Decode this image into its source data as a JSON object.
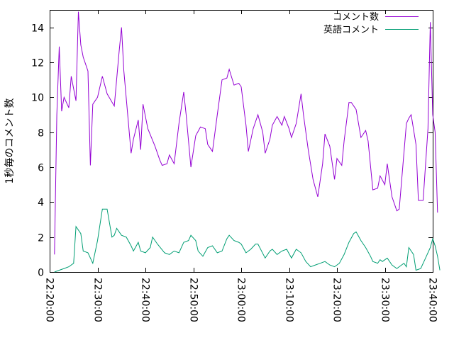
{
  "chart_data": {
    "type": "line",
    "title": "",
    "xlabel": "",
    "ylabel": "1秒毎のコメント数",
    "xlim": [
      "22:20:00",
      "23:40:00"
    ],
    "ylim": [
      0,
      15
    ],
    "x_ticks": [
      "22:20:00",
      "22:30:00",
      "22:40:00",
      "22:50:00",
      "23:00:00",
      "23:10:00",
      "23:20:00",
      "23:30:00",
      "23:40:00"
    ],
    "y_ticks": [
      "0",
      "2",
      "4",
      "6",
      "8",
      "10",
      "12",
      "14"
    ],
    "grid": false,
    "legend_position": "top-right",
    "series": [
      {
        "name": "コメント数",
        "color": "#9400d3",
        "points": [
          [
            "22:21:00",
            1.0
          ],
          [
            "22:21:30",
            9.0
          ],
          [
            "22:22:00",
            12.9
          ],
          [
            "22:22:30",
            9.2
          ],
          [
            "22:23:00",
            10.0
          ],
          [
            "22:24:00",
            9.4
          ],
          [
            "22:24:30",
            11.2
          ],
          [
            "22:25:30",
            9.8
          ],
          [
            "22:26:00",
            14.9
          ],
          [
            "22:26:30",
            13.0
          ],
          [
            "22:27:00",
            12.3
          ],
          [
            "22:28:00",
            11.5
          ],
          [
            "22:28:30",
            6.1
          ],
          [
            "22:29:00",
            9.6
          ],
          [
            "22:30:00",
            10.0
          ],
          [
            "22:31:00",
            11.2
          ],
          [
            "22:32:00",
            10.2
          ],
          [
            "22:33:30",
            9.5
          ],
          [
            "22:34:30",
            12.6
          ],
          [
            "22:35:00",
            14.0
          ],
          [
            "22:35:30",
            11.5
          ],
          [
            "22:37:00",
            6.8
          ],
          [
            "22:37:30",
            7.6
          ],
          [
            "22:38:30",
            8.7
          ],
          [
            "22:39:00",
            7.0
          ],
          [
            "22:39:30",
            9.6
          ],
          [
            "22:40:30",
            8.2
          ],
          [
            "22:42:00",
            7.2
          ],
          [
            "22:43:00",
            6.4
          ],
          [
            "22:43:30",
            6.1
          ],
          [
            "22:44:30",
            6.2
          ],
          [
            "22:45:00",
            6.7
          ],
          [
            "22:46:00",
            6.2
          ],
          [
            "22:47:00",
            8.5
          ],
          [
            "22:48:00",
            10.3
          ],
          [
            "22:48:30",
            9.0
          ],
          [
            "22:49:30",
            6.0
          ],
          [
            "22:50:30",
            7.8
          ],
          [
            "22:51:30",
            8.3
          ],
          [
            "22:52:30",
            8.2
          ],
          [
            "22:53:00",
            7.3
          ],
          [
            "22:54:00",
            6.9
          ],
          [
            "22:55:00",
            9.0
          ],
          [
            "22:56:00",
            11.0
          ],
          [
            "22:57:00",
            11.1
          ],
          [
            "22:57:30",
            11.6
          ],
          [
            "22:58:30",
            10.7
          ],
          [
            "22:59:30",
            10.8
          ],
          [
            "23:00:00",
            10.6
          ],
          [
            "23:01:00",
            8.4
          ],
          [
            "23:01:30",
            6.9
          ],
          [
            "23:02:30",
            8.2
          ],
          [
            "23:03:30",
            9.0
          ],
          [
            "23:04:30",
            8.0
          ],
          [
            "23:05:00",
            6.8
          ],
          [
            "23:06:00",
            7.6
          ],
          [
            "23:06:30",
            8.4
          ],
          [
            "23:07:30",
            8.9
          ],
          [
            "23:08:30",
            8.4
          ],
          [
            "23:09:00",
            8.9
          ],
          [
            "23:10:00",
            8.2
          ],
          [
            "23:10:30",
            7.7
          ],
          [
            "23:11:30",
            8.5
          ],
          [
            "23:12:30",
            10.2
          ],
          [
            "23:13:00",
            9.0
          ],
          [
            "23:14:00",
            7.0
          ],
          [
            "23:15:00",
            5.3
          ],
          [
            "23:16:00",
            4.3
          ],
          [
            "23:17:00",
            6.2
          ],
          [
            "23:17:30",
            7.9
          ],
          [
            "23:18:30",
            7.2
          ],
          [
            "23:19:30",
            5.3
          ],
          [
            "23:20:00",
            6.5
          ],
          [
            "23:21:00",
            6.1
          ],
          [
            "23:21:30",
            7.5
          ],
          [
            "23:22:30",
            9.7
          ],
          [
            "23:23:00",
            9.7
          ],
          [
            "23:24:00",
            9.3
          ],
          [
            "23:25:00",
            7.7
          ],
          [
            "23:26:00",
            8.1
          ],
          [
            "23:26:30",
            7.5
          ],
          [
            "23:27:30",
            4.7
          ],
          [
            "23:28:30",
            4.8
          ],
          [
            "23:29:00",
            5.5
          ],
          [
            "23:30:00",
            5.0
          ],
          [
            "23:30:30",
            6.2
          ],
          [
            "23:31:30",
            4.3
          ],
          [
            "23:32:30",
            3.5
          ],
          [
            "23:33:00",
            3.6
          ],
          [
            "23:34:30",
            8.5
          ],
          [
            "23:35:00",
            8.8
          ],
          [
            "23:35:30",
            9.0
          ],
          [
            "23:36:30",
            7.3
          ],
          [
            "23:37:00",
            4.1
          ],
          [
            "23:38:00",
            4.1
          ],
          [
            "23:39:00",
            8.2
          ],
          [
            "23:39:30",
            14.3
          ],
          [
            "23:40:00",
            9.0
          ],
          [
            "23:40:30",
            8.0
          ],
          [
            "23:41:00",
            3.4
          ]
        ]
      },
      {
        "name": "英語コメント",
        "color": "#009e73",
        "points": [
          [
            "22:21:00",
            0.0
          ],
          [
            "22:22:00",
            0.1
          ],
          [
            "22:23:00",
            0.2
          ],
          [
            "22:24:00",
            0.3
          ],
          [
            "22:25:00",
            0.5
          ],
          [
            "22:25:30",
            2.6
          ],
          [
            "22:26:30",
            2.2
          ],
          [
            "22:27:00",
            1.2
          ],
          [
            "22:28:00",
            1.1
          ],
          [
            "22:29:00",
            0.5
          ],
          [
            "22:30:00",
            1.8
          ],
          [
            "22:31:00",
            3.6
          ],
          [
            "22:32:00",
            3.6
          ],
          [
            "22:33:00",
            2.0
          ],
          [
            "22:33:30",
            2.1
          ],
          [
            "22:34:00",
            2.5
          ],
          [
            "22:35:00",
            2.1
          ],
          [
            "22:36:00",
            2.0
          ],
          [
            "22:37:00",
            1.5
          ],
          [
            "22:37:30",
            1.2
          ],
          [
            "22:38:30",
            1.7
          ],
          [
            "22:39:00",
            1.2
          ],
          [
            "22:40:00",
            1.1
          ],
          [
            "22:41:00",
            1.4
          ],
          [
            "22:41:30",
            2.0
          ],
          [
            "22:42:30",
            1.6
          ],
          [
            "22:44:00",
            1.1
          ],
          [
            "22:45:00",
            1.0
          ],
          [
            "22:46:00",
            1.2
          ],
          [
            "22:47:00",
            1.1
          ],
          [
            "22:48:00",
            1.7
          ],
          [
            "22:49:00",
            1.8
          ],
          [
            "22:49:30",
            2.1
          ],
          [
            "22:50:30",
            1.8
          ],
          [
            "22:51:00",
            1.2
          ],
          [
            "22:52:00",
            0.9
          ],
          [
            "22:53:00",
            1.4
          ],
          [
            "22:54:00",
            1.5
          ],
          [
            "22:55:00",
            1.1
          ],
          [
            "22:56:00",
            1.2
          ],
          [
            "22:57:00",
            1.9
          ],
          [
            "22:57:30",
            2.1
          ],
          [
            "22:58:30",
            1.8
          ],
          [
            "22:59:30",
            1.7
          ],
          [
            "23:00:00",
            1.6
          ],
          [
            "23:01:00",
            1.1
          ],
          [
            "23:02:00",
            1.3
          ],
          [
            "23:03:00",
            1.6
          ],
          [
            "23:03:30",
            1.6
          ],
          [
            "23:05:00",
            0.8
          ],
          [
            "23:06:00",
            1.2
          ],
          [
            "23:06:30",
            1.3
          ],
          [
            "23:07:30",
            1.0
          ],
          [
            "23:08:30",
            1.2
          ],
          [
            "23:09:30",
            1.3
          ],
          [
            "23:10:30",
            0.8
          ],
          [
            "23:11:30",
            1.3
          ],
          [
            "23:12:30",
            1.1
          ],
          [
            "23:13:30",
            0.6
          ],
          [
            "23:14:30",
            0.3
          ],
          [
            "23:15:30",
            0.4
          ],
          [
            "23:16:30",
            0.5
          ],
          [
            "23:17:30",
            0.6
          ],
          [
            "23:18:30",
            0.4
          ],
          [
            "23:19:30",
            0.3
          ],
          [
            "23:20:30",
            0.5
          ],
          [
            "23:21:30",
            1.0
          ],
          [
            "23:22:30",
            1.7
          ],
          [
            "23:23:30",
            2.2
          ],
          [
            "23:24:00",
            2.3
          ],
          [
            "23:25:00",
            1.8
          ],
          [
            "23:26:00",
            1.4
          ],
          [
            "23:27:00",
            0.9
          ],
          [
            "23:27:30",
            0.6
          ],
          [
            "23:28:30",
            0.5
          ],
          [
            "23:29:00",
            0.7
          ],
          [
            "23:29:30",
            0.6
          ],
          [
            "23:30:30",
            0.8
          ],
          [
            "23:31:30",
            0.4
          ],
          [
            "23:32:30",
            0.2
          ],
          [
            "23:33:30",
            0.4
          ],
          [
            "23:34:00",
            0.5
          ],
          [
            "23:34:30",
            0.3
          ],
          [
            "23:35:00",
            1.4
          ],
          [
            "23:36:00",
            1.0
          ],
          [
            "23:36:30",
            0.1
          ],
          [
            "23:37:30",
            0.2
          ],
          [
            "23:38:30",
            0.8
          ],
          [
            "23:39:30",
            1.4
          ],
          [
            "23:40:00",
            1.9
          ],
          [
            "23:40:30",
            1.5
          ],
          [
            "23:41:00",
            0.9
          ],
          [
            "23:41:30",
            0.1
          ]
        ]
      }
    ]
  }
}
